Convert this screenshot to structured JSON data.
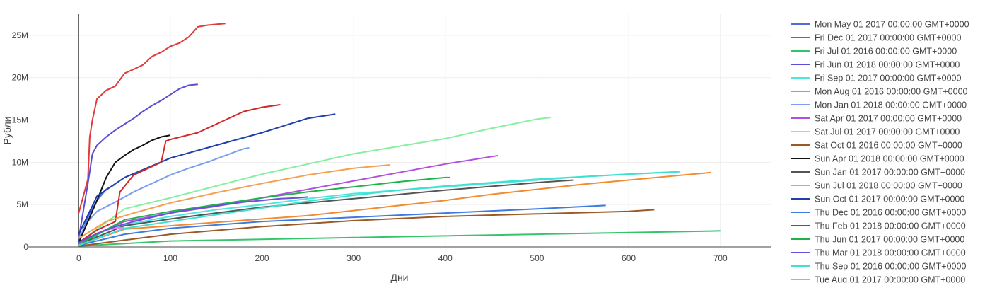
{
  "chart_data": {
    "type": "line",
    "title": "",
    "xlabel": "Дни",
    "ylabel": "Рубли",
    "xlim": [
      -55,
      755
    ],
    "ylim": [
      0,
      27500000
    ],
    "xticks": [
      0,
      100,
      200,
      300,
      400,
      500,
      600,
      700
    ],
    "xtick_labels": [
      "0",
      "100",
      "200",
      "300",
      "400",
      "500",
      "600",
      "700"
    ],
    "yticks": [
      0,
      5000000,
      10000000,
      15000000,
      20000000,
      25000000
    ],
    "ytick_labels": [
      "0",
      "5M",
      "10M",
      "15M",
      "20M",
      "25M"
    ],
    "grid": true,
    "legend_position": "right",
    "series": [
      {
        "name": "Mon May 01 2017 00:00:00 GMT+0000",
        "color": "#4a6fdc",
        "x": [
          0,
          10,
          20,
          30,
          40
        ],
        "y": [
          600000,
          3500000,
          5500000,
          6800000,
          7400000
        ]
      },
      {
        "name": "Fri Dec 01 2017 00:00:00 GMT+0000",
        "color": "#e03b3b",
        "x": [
          0,
          5,
          10,
          12,
          15,
          20,
          25,
          30,
          40,
          50,
          60,
          70,
          80,
          90,
          100,
          110,
          120,
          130,
          140,
          150,
          160
        ],
        "y": [
          4000000,
          6000000,
          8000000,
          13000000,
          15000000,
          17500000,
          18000000,
          18500000,
          19000000,
          20500000,
          21000000,
          21500000,
          22500000,
          23000000,
          23700000,
          24100000,
          24800000,
          26000000,
          26200000,
          26300000,
          26400000
        ]
      },
      {
        "name": "Fri Jul 01 2016 00:00:00 GMT+0000",
        "color": "#35c46a",
        "x": [
          0,
          50,
          100,
          200,
          300,
          400,
          500,
          600,
          700
        ],
        "y": [
          100000,
          400000,
          700000,
          900000,
          1100000,
          1300000,
          1500000,
          1700000,
          1900000
        ]
      },
      {
        "name": "Fri Jun 01 2018 00:00:00 GMT+0000",
        "color": "#5a4fd4",
        "x": [
          0,
          10,
          15,
          20,
          30,
          40,
          50,
          60,
          70,
          80,
          90,
          100,
          110,
          120,
          130
        ],
        "y": [
          1000000,
          7500000,
          11000000,
          12000000,
          13000000,
          13800000,
          14500000,
          15200000,
          16000000,
          16700000,
          17300000,
          18000000,
          18700000,
          19100000,
          19200000
        ]
      },
      {
        "name": "Fri Sep 01 2017 00:00:00 GMT+0000",
        "color": "#4fe6e0",
        "x": [
          0,
          30,
          60,
          100,
          150,
          200,
          250,
          300,
          350,
          400,
          450,
          500,
          550,
          600,
          656
        ],
        "y": [
          200000,
          2000000,
          2800000,
          3600000,
          4400000,
          5000000,
          5700000,
          6300000,
          6700000,
          7100000,
          7500000,
          7900000,
          8300000,
          8600000,
          8900000
        ]
      },
      {
        "name": "Mon Aug 01 2016 00:00:00 GMT+0000",
        "color": "#f28b30",
        "x": [
          0,
          50,
          100,
          150,
          200,
          250,
          300,
          350,
          400,
          450,
          500,
          550,
          600,
          650,
          690
        ],
        "y": [
          200000,
          2100000,
          2500000,
          2900000,
          3300000,
          3700000,
          4300000,
          4900000,
          5500000,
          6200000,
          6800000,
          7400000,
          7900000,
          8400000,
          8800000
        ]
      },
      {
        "name": "Mon Jan 01 2018 00:00:00 GMT+0000",
        "color": "#7b9ef0",
        "x": [
          0,
          10,
          20,
          40,
          60,
          80,
          100,
          120,
          140,
          160,
          180,
          186
        ],
        "y": [
          1000000,
          3000000,
          4200000,
          5300000,
          6500000,
          7500000,
          8500000,
          9300000,
          10000000,
          10800000,
          11600000,
          11700000
        ]
      },
      {
        "name": "Sat Apr 01 2017 00:00:00 GMT+0000",
        "color": "#b04fe0",
        "x": [
          0,
          50,
          100,
          150,
          200,
          250,
          300,
          350,
          400,
          458
        ],
        "y": [
          600000,
          3000000,
          4000000,
          4800000,
          5800000,
          6800000,
          7800000,
          8800000,
          9800000,
          10800000
        ]
      },
      {
        "name": "Sat Jul 01 2017 00:00:00 GMT+0000",
        "color": "#86f0a0",
        "x": [
          0,
          50,
          100,
          150,
          200,
          250,
          300,
          350,
          400,
          450,
          500,
          515
        ],
        "y": [
          500000,
          4500000,
          5800000,
          7200000,
          8600000,
          9800000,
          11000000,
          11900000,
          12800000,
          14000000,
          15100000,
          15300000
        ]
      },
      {
        "name": "Sat Oct 01 2016 00:00:00 GMT+0000",
        "color": "#9a5a28",
        "x": [
          0,
          50,
          100,
          200,
          300,
          400,
          500,
          600,
          628
        ],
        "y": [
          100000,
          800000,
          1500000,
          2400000,
          3100000,
          3600000,
          3900000,
          4200000,
          4400000
        ]
      },
      {
        "name": "Sun Apr 01 2018 00:00:00 GMT+0000",
        "color": "#111111",
        "x": [
          0,
          10,
          20,
          30,
          40,
          50,
          60,
          70,
          80,
          90,
          100
        ],
        "y": [
          500000,
          3000000,
          5500000,
          8200000,
          10000000,
          10800000,
          11500000,
          12000000,
          12600000,
          13000000,
          13200000
        ]
      },
      {
        "name": "Sun Jan 01 2017 00:00:00 GMT+0000",
        "color": "#555555",
        "x": [
          0,
          50,
          100,
          200,
          300,
          400,
          500,
          540
        ],
        "y": [
          300000,
          2500000,
          3300000,
          4700000,
          5700000,
          6700000,
          7600000,
          7900000
        ]
      },
      {
        "name": "Sun Jul 01 2018 00:00:00 GMT+0000",
        "color": "#f07ef0",
        "x": [
          0,
          10,
          20,
          30,
          40,
          50
        ],
        "y": [
          200000,
          1000000,
          1600000,
          2000000,
          2200000,
          2300000
        ]
      },
      {
        "name": "Sun Oct 01 2017 00:00:00 GMT+0000",
        "color": "#1e3fae",
        "x": [
          0,
          20,
          50,
          100,
          150,
          200,
          250,
          280
        ],
        "y": [
          1500000,
          6000000,
          8200000,
          10500000,
          12000000,
          13500000,
          15200000,
          15700000
        ]
      },
      {
        "name": "Thu Dec 01 2016 00:00:00 GMT+0000",
        "color": "#3d7ae0",
        "x": [
          0,
          50,
          100,
          200,
          300,
          400,
          500,
          575
        ],
        "y": [
          200000,
          1500000,
          2200000,
          3000000,
          3500000,
          4000000,
          4500000,
          4900000
        ]
      },
      {
        "name": "Thu Feb 01 2018 00:00:00 GMT+0000",
        "color": "#d02828",
        "x": [
          0,
          20,
          40,
          45,
          60,
          80,
          90,
          95,
          100,
          130,
          140,
          160,
          180,
          200,
          220
        ],
        "y": [
          500000,
          2000000,
          3000000,
          6500000,
          8500000,
          9500000,
          10000000,
          12500000,
          12700000,
          13500000,
          14000000,
          15000000,
          16000000,
          16500000,
          16800000
        ]
      },
      {
        "name": "Thu Jun 01 2017 00:00:00 GMT+0000",
        "color": "#22b24c",
        "x": [
          0,
          50,
          100,
          150,
          200,
          250,
          300,
          350,
          400,
          405
        ],
        "y": [
          300000,
          3200000,
          4200000,
          5000000,
          5800000,
          6500000,
          7100000,
          7700000,
          8200000,
          8200000
        ]
      },
      {
        "name": "Thu Mar 01 2018 00:00:00 GMT+0000",
        "color": "#6a4fd8",
        "x": [
          0,
          20,
          40,
          60,
          80,
          100,
          120,
          140,
          160,
          180,
          200,
          220,
          240,
          250
        ],
        "y": [
          500000,
          1600000,
          2400000,
          3000000,
          3500000,
          4000000,
          4400000,
          4700000,
          5000000,
          5300000,
          5500000,
          5700000,
          5800000,
          5900000
        ]
      },
      {
        "name": "Thu Sep 01 2016 00:00:00 GMT+0000",
        "color": "#3fe0d0",
        "x": [
          0,
          50,
          100,
          150,
          200,
          250,
          300,
          350,
          400,
          450,
          500,
          550,
          600,
          650,
          656
        ],
        "y": [
          200000,
          2200000,
          3000000,
          3800000,
          4600000,
          5400000,
          6100000,
          6700000,
          7200000,
          7600000,
          8000000,
          8300000,
          8600000,
          8850000,
          8900000
        ]
      },
      {
        "name": "Tue Aug 01 2017 00:00:00 GMT+0000",
        "color": "#f5a050",
        "x": [
          0,
          30,
          60,
          100,
          150,
          200,
          250,
          300,
          340
        ],
        "y": [
          1000000,
          3000000,
          4000000,
          5200000,
          6400000,
          7500000,
          8500000,
          9300000,
          9700000
        ]
      }
    ]
  }
}
